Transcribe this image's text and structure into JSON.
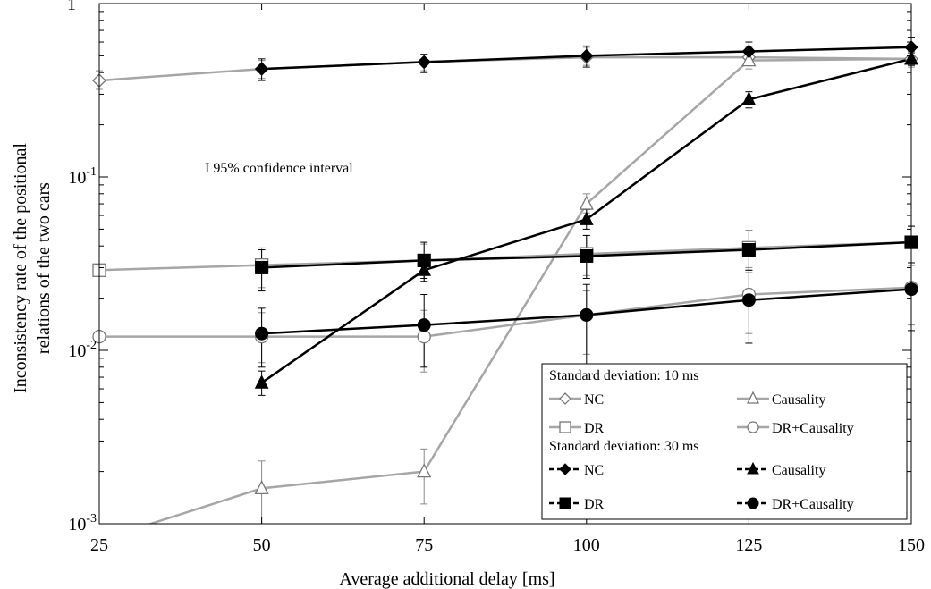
{
  "chart_data": {
    "type": "line",
    "xlabel": "Average additional delay [ms]",
    "ylabel_lines": [
      "Inconsistency rate of the positional",
      "relations of the two cars"
    ],
    "x_ticks": [
      25,
      50,
      75,
      100,
      125,
      150
    ],
    "x_tick_labels": [
      "25",
      "50",
      "75",
      "100",
      "125",
      "150"
    ],
    "xlim": [
      25,
      150
    ],
    "y_scale": "log",
    "ylim": [
      0.001,
      1
    ],
    "y_ticks": [
      {
        "value": 1,
        "base": "1",
        "exp": ""
      },
      {
        "value": 0.1,
        "base": "10",
        "exp": "-1"
      },
      {
        "value": 0.01,
        "base": "10",
        "exp": "-2"
      },
      {
        "value": 0.001,
        "base": "10",
        "exp": "-3"
      }
    ],
    "grid": false,
    "annotation": {
      "text": "I 95% confidence interval",
      "x": 27,
      "y": 0.075
    },
    "legend": {
      "placement": "bottom-right",
      "groups": [
        {
          "title": "Standard deviation: 10 ms",
          "entries": [
            {
              "label": "NC",
              "series_index": 0
            },
            {
              "label": "Causality",
              "series_index": 1
            },
            {
              "label": "DR",
              "series_index": 2
            },
            {
              "label": "DR+Causality",
              "series_index": 3
            }
          ]
        },
        {
          "title": "Standard deviation: 30 ms",
          "entries": [
            {
              "label": "NC",
              "series_index": 4
            },
            {
              "label": "Causality",
              "series_index": 5
            },
            {
              "label": "DR",
              "series_index": 6
            },
            {
              "label": "DR+Causality",
              "series_index": 7
            }
          ]
        }
      ]
    },
    "series": [
      {
        "name": "NC",
        "group": "Standard deviation: 10 ms",
        "color": "#999999",
        "marker": "diamond",
        "filled": false,
        "x": [
          25,
          50,
          75,
          100,
          125,
          150
        ],
        "y": [
          0.36,
          0.42,
          0.46,
          0.49,
          0.49,
          0.48
        ],
        "err_low": [
          0.32,
          0.37,
          0.41,
          0.44,
          0.45,
          0.44
        ],
        "err_high": [
          0.41,
          0.47,
          0.51,
          0.56,
          0.56,
          0.55
        ]
      },
      {
        "name": "Causality",
        "group": "Standard deviation: 10 ms",
        "color": "#999999",
        "marker": "triangle",
        "filled": false,
        "x": [
          20,
          50,
          75,
          100,
          125,
          150
        ],
        "y": [
          0.0007,
          0.0016,
          0.002,
          0.07,
          0.47,
          0.48
        ],
        "err_low": [
          null,
          0.001,
          0.0013,
          0.062,
          0.42,
          0.43
        ],
        "err_high": [
          null,
          0.0023,
          0.0027,
          0.08,
          0.52,
          0.53
        ]
      },
      {
        "name": "DR",
        "group": "Standard deviation: 10 ms",
        "color": "#999999",
        "marker": "square",
        "filled": false,
        "x": [
          25,
          50,
          75,
          100,
          125,
          150
        ],
        "y": [
          0.029,
          0.031,
          0.033,
          0.036,
          0.039,
          0.042
        ],
        "err_low": [
          null,
          0.023,
          0.025,
          0.027,
          0.029,
          0.031
        ],
        "err_high": [
          null,
          0.039,
          0.041,
          0.046,
          0.049,
          0.052
        ]
      },
      {
        "name": "DR+Causality",
        "group": "Standard deviation: 10 ms",
        "color": "#999999",
        "marker": "circle",
        "filled": false,
        "x": [
          25,
          50,
          75,
          100,
          125,
          150
        ],
        "y": [
          0.012,
          0.012,
          0.012,
          0.016,
          0.021,
          0.023
        ],
        "err_low": [
          null,
          0.0085,
          0.0075,
          0.0095,
          0.0125,
          0.014
        ],
        "err_high": [
          null,
          0.0165,
          0.017,
          0.022,
          0.03,
          0.031
        ]
      },
      {
        "name": "NC",
        "group": "Standard deviation: 30 ms",
        "color": "#000000",
        "marker": "diamond",
        "filled": true,
        "x": [
          50,
          75,
          100,
          125,
          150
        ],
        "y": [
          0.42,
          0.46,
          0.5,
          0.53,
          0.56
        ],
        "err_low": [
          0.36,
          0.4,
          0.43,
          0.47,
          0.5
        ],
        "err_high": [
          0.48,
          0.51,
          0.57,
          0.6,
          0.64
        ]
      },
      {
        "name": "Causality",
        "group": "Standard deviation: 30 ms",
        "color": "#000000",
        "marker": "triangle",
        "filled": true,
        "x": [
          50,
          75,
          100,
          125,
          150
        ],
        "y": [
          0.0065,
          0.029,
          0.057,
          0.28,
          0.48
        ],
        "err_low": [
          0.0055,
          0.025,
          0.05,
          0.25,
          0.44
        ],
        "err_high": [
          0.0076,
          0.033,
          0.065,
          0.31,
          0.52
        ]
      },
      {
        "name": "DR",
        "group": "Standard deviation: 30 ms",
        "color": "#000000",
        "marker": "square",
        "filled": true,
        "x": [
          50,
          75,
          100,
          125,
          150
        ],
        "y": [
          0.03,
          0.033,
          0.035,
          0.038,
          0.042
        ],
        "err_low": [
          0.022,
          0.026,
          0.026,
          0.029,
          0.031
        ],
        "err_high": [
          0.038,
          0.042,
          0.046,
          0.049,
          0.052
        ]
      },
      {
        "name": "DR+Causality",
        "group": "Standard deviation: 30 ms",
        "color": "#000000",
        "marker": "circle",
        "filled": true,
        "x": [
          50,
          75,
          100,
          125,
          150
        ],
        "y": [
          0.0125,
          0.014,
          0.016,
          0.0195,
          0.0225
        ],
        "err_low": [
          0.008,
          0.008,
          0.008,
          0.011,
          0.013
        ],
        "err_high": [
          0.0175,
          0.021,
          0.024,
          0.028,
          0.032
        ]
      }
    ]
  }
}
